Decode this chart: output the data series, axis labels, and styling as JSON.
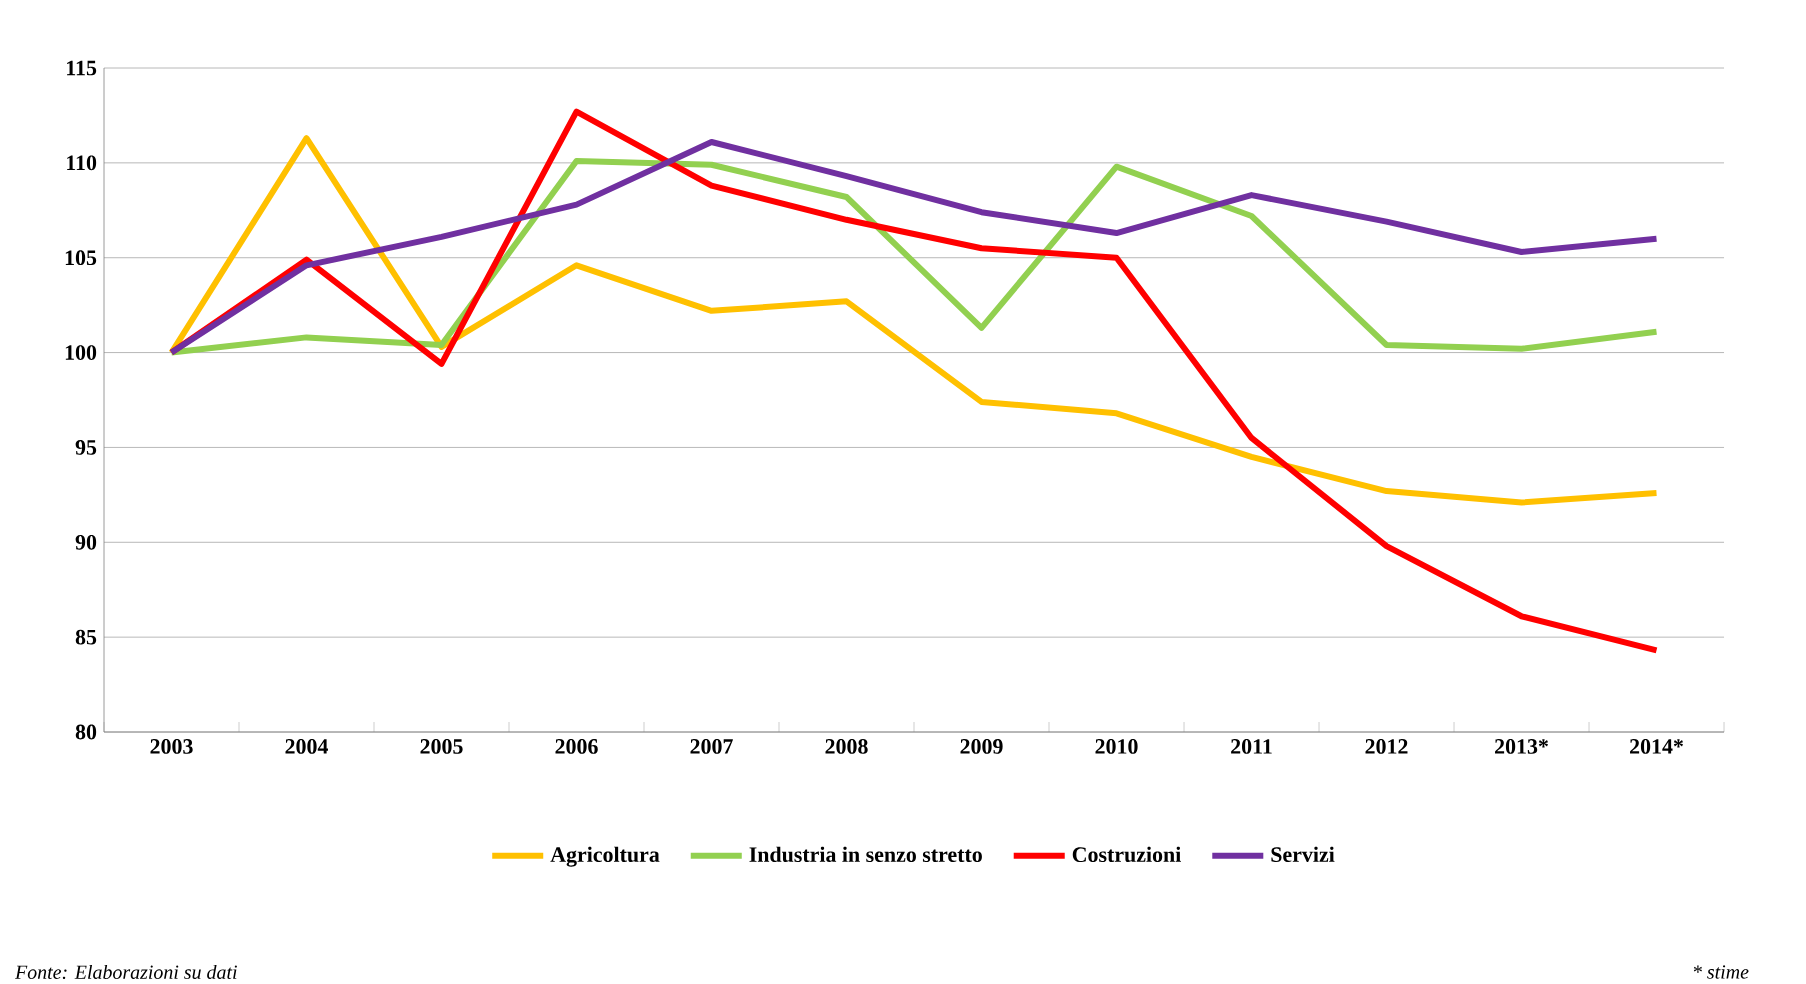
{
  "chart_data": {
    "type": "line",
    "categories": [
      "2003",
      "2004",
      "2005",
      "2006",
      "2007",
      "2008",
      "2009",
      "2010",
      "2011",
      "2012",
      "2013*",
      "2014*"
    ],
    "series": [
      {
        "name": "Agricoltura",
        "color": "#ffc000",
        "values": [
          100,
          111.3,
          100.3,
          104.6,
          102.2,
          102.7,
          97.4,
          96.8,
          94.5,
          92.7,
          92.1,
          92.6
        ]
      },
      {
        "name": "Industria in senzo stretto",
        "color": "#92d050",
        "values": [
          100,
          100.8,
          100.4,
          110.1,
          109.9,
          108.2,
          101.3,
          109.8,
          107.2,
          100.4,
          100.2,
          101.1
        ]
      },
      {
        "name": "Costruzioni",
        "color": "#ff0000",
        "values": [
          100,
          104.9,
          99.4,
          112.7,
          108.8,
          107.0,
          105.5,
          105.0,
          95.5,
          89.8,
          86.1,
          84.3
        ]
      },
      {
        "name": "Servizi",
        "color": "#7030a0",
        "values": [
          100,
          104.6,
          106.1,
          107.8,
          111.1,
          109.3,
          107.4,
          106.3,
          108.3,
          106.9,
          105.3,
          106.0
        ]
      }
    ],
    "ylim": [
      80,
      115
    ],
    "yticks": [
      80,
      85,
      90,
      95,
      100,
      105,
      110,
      115
    ],
    "grid": "y",
    "legend": "bottom",
    "annotations": [
      "Fonte: Elaborazioni su dati",
      "* stime"
    ]
  }
}
